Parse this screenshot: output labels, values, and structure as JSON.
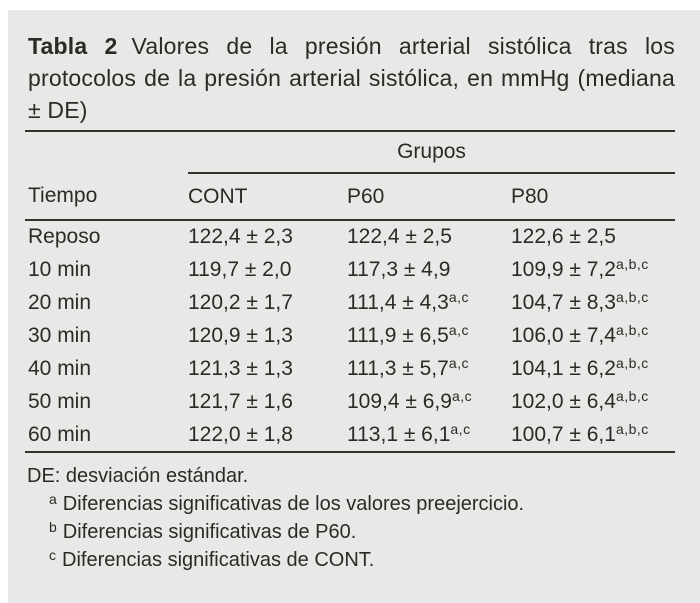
{
  "caption": {
    "label": "Tabla 2",
    "text": "Valores de la presión arterial sistólica tras los protocolos de la presión arterial sistólica, en mmHg (mediana ± DE)"
  },
  "table": {
    "group_header": "Grupos",
    "columns": [
      "Tiempo",
      "CONT",
      "P60",
      "P80"
    ],
    "rows": [
      {
        "time": "Reposo",
        "cells": [
          {
            "v": "122,4 ± 2,3",
            "sup": ""
          },
          {
            "v": "122,4 ± 2,5",
            "sup": ""
          },
          {
            "v": "122,6 ± 2,5",
            "sup": ""
          }
        ]
      },
      {
        "time": "10 min",
        "cells": [
          {
            "v": "119,7 ± 2,0",
            "sup": ""
          },
          {
            "v": "117,3 ± 4,9",
            "sup": ""
          },
          {
            "v": "109,9 ± 7,2",
            "sup": "a,b,c"
          }
        ]
      },
      {
        "time": "20 min",
        "cells": [
          {
            "v": "120,2 ± 1,7",
            "sup": ""
          },
          {
            "v": "111,4 ± 4,3",
            "sup": "a,c"
          },
          {
            "v": "104,7 ± 8,3",
            "sup": "a,b,c"
          }
        ]
      },
      {
        "time": "30 min",
        "cells": [
          {
            "v": "120,9 ± 1,3",
            "sup": ""
          },
          {
            "v": "111,9 ± 6,5",
            "sup": "a,c"
          },
          {
            "v": "106,0 ± 7,4",
            "sup": "a,b,c"
          }
        ]
      },
      {
        "time": "40 min",
        "cells": [
          {
            "v": "121,3 ± 1,3",
            "sup": ""
          },
          {
            "v": "111,3 ± 5,7",
            "sup": "a,c"
          },
          {
            "v": "104,1 ± 6,2",
            "sup": "a,b,c"
          }
        ]
      },
      {
        "time": "50 min",
        "cells": [
          {
            "v": "121,7 ± 1,6",
            "sup": ""
          },
          {
            "v": "109,4 ± 6,9",
            "sup": "a,c"
          },
          {
            "v": "102,0 ± 6,4",
            "sup": "a,b,c"
          }
        ]
      },
      {
        "time": "60 min",
        "cells": [
          {
            "v": "122,0 ± 1,8",
            "sup": ""
          },
          {
            "v": "113,1 ± 6,1",
            "sup": "a,c"
          },
          {
            "v": "100,7 ± 6,1",
            "sup": "a,b,c"
          }
        ]
      }
    ]
  },
  "footnotes": {
    "abbrev": "DE: desviación estándar.",
    "items": [
      {
        "marker": "a",
        "text": "Diferencias significativas de los valores preejercicio."
      },
      {
        "marker": "b",
        "text": "Diferencias significativas de P60."
      },
      {
        "marker": "c",
        "text": "Diferencias significativas de CONT."
      }
    ]
  },
  "colors": {
    "card_bg": "#e8e8e6",
    "text": "#2b2a27",
    "rule": "#343330"
  }
}
